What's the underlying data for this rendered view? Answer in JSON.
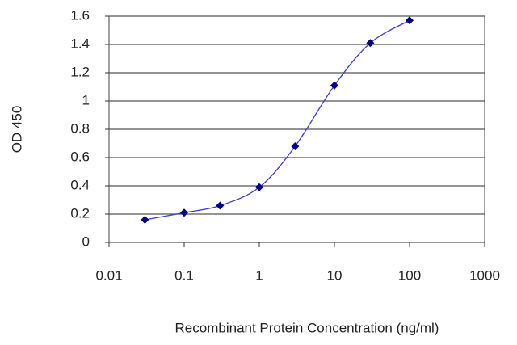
{
  "chart_data": {
    "type": "line",
    "xlabel": "Recombinant Protein Concentration (ng/ml)",
    "ylabel": "OD 450",
    "x": [
      0.03,
      0.1,
      0.3,
      1,
      3,
      10,
      30,
      100
    ],
    "series": [
      {
        "color": "#00008b",
        "line_color": "#3b3bd0",
        "values": [
          0.16,
          0.21,
          0.26,
          0.39,
          0.68,
          1.11,
          1.41,
          1.57
        ]
      }
    ],
    "xscale": "log",
    "xlim": [
      0.01,
      1000
    ],
    "xticks": [
      0.01,
      0.1,
      1,
      10,
      100,
      1000
    ],
    "ylim": [
      0,
      1.6
    ],
    "yticks": [
      0,
      0.2,
      0.4,
      0.6,
      0.8,
      1,
      1.2,
      1.4,
      1.6
    ],
    "grid": true
  }
}
